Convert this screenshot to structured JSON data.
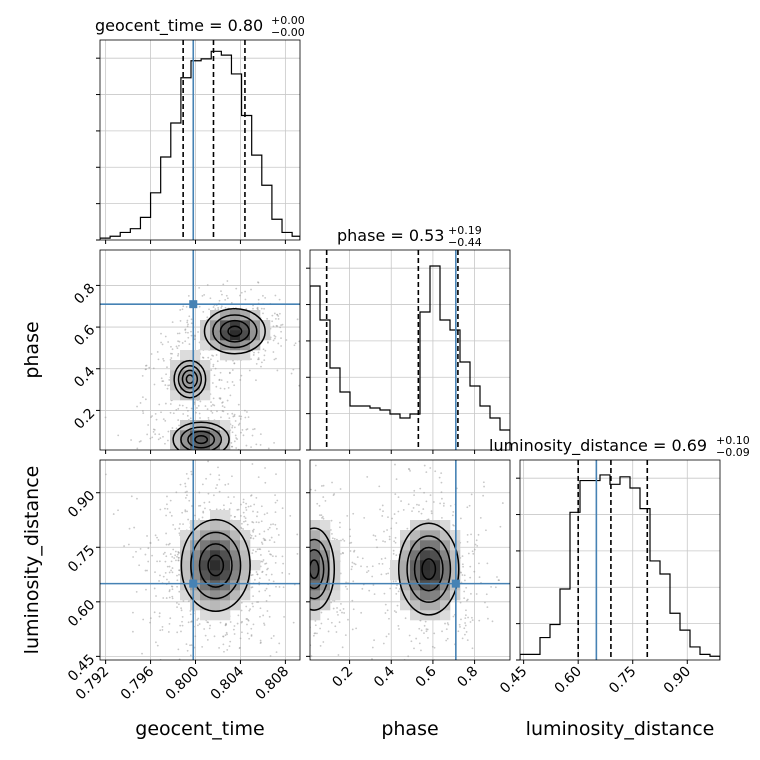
{
  "chart_data": {
    "type": "corner",
    "parameters": [
      "geocent_time",
      "phase",
      "luminosity_distance"
    ],
    "truths": {
      "geocent_time": 0.7998,
      "phase": 0.71,
      "luminosity_distance": 0.65
    },
    "colors": {
      "truth": "#4682b4",
      "hist": "#000000",
      "grid": "#c8c8c8",
      "density_max": "#333333"
    },
    "grid": true,
    "titles": [
      {
        "param": "geocent_time",
        "label": "geocent_time = 0.80",
        "plus": "+0.00",
        "minus": "−0.00"
      },
      {
        "param": "phase",
        "label": "phase = 0.53",
        "plus": "+0.19",
        "minus": "−0.44"
      },
      {
        "param": "luminosity_distance",
        "label": "luminosity_distance = 0.69",
        "plus": "+0.10",
        "minus": "−0.09"
      }
    ],
    "axis_labels": {
      "x": [
        "geocent_time",
        "phase",
        "luminosity_distance"
      ],
      "y": [
        "phase",
        "luminosity_distance"
      ]
    },
    "ranges": {
      "geocent_time": [
        0.7915,
        0.8093
      ],
      "phase": [
        0.01,
        0.97
      ],
      "luminosity_distance": [
        0.44,
        0.99
      ]
    },
    "ticks": {
      "geocent_time": [
        {
          "v": 0.792,
          "t": "0.792"
        },
        {
          "v": 0.796,
          "t": "0.796"
        },
        {
          "v": 0.8,
          "t": "0.800"
        },
        {
          "v": 0.804,
          "t": "0.804"
        },
        {
          "v": 0.808,
          "t": "0.808"
        }
      ],
      "phase": [
        {
          "v": 0.2,
          "t": "0.2"
        },
        {
          "v": 0.4,
          "t": "0.4"
        },
        {
          "v": 0.6,
          "t": "0.6"
        },
        {
          "v": 0.8,
          "t": "0.8"
        }
      ],
      "luminosity_distance": [
        {
          "v": 0.45,
          "t": "0.45"
        },
        {
          "v": 0.6,
          "t": "0.60"
        },
        {
          "v": 0.75,
          "t": "0.75"
        },
        {
          "v": 0.9,
          "t": "0.90"
        }
      ]
    },
    "quantiles": {
      "geocent_time": [
        0.7989,
        0.8016,
        0.8044
      ],
      "phase": [
        0.09,
        0.53,
        0.72
      ],
      "luminosity_distance": [
        0.6,
        0.69,
        0.79
      ]
    },
    "histograms": [
      {
        "param": "geocent_time",
        "edges": [
          0.7915,
          0.7924,
          0.7933,
          0.7942,
          0.7951,
          0.796,
          0.7969,
          0.7978,
          0.7987,
          0.7996,
          0.8005,
          0.8014,
          0.8023,
          0.8032,
          0.8041,
          0.805,
          0.8059,
          0.8068,
          0.8077,
          0.8086,
          0.8093
        ],
        "counts": [
          0.01,
          0.02,
          0.04,
          0.06,
          0.12,
          0.25,
          0.44,
          0.62,
          0.86,
          0.95,
          0.96,
          1.0,
          0.98,
          0.88,
          0.66,
          0.45,
          0.29,
          0.11,
          0.04,
          0.02
        ],
        "ymax": 1.06
      },
      {
        "param": "phase",
        "edges": [
          0.01,
          0.058,
          0.106,
          0.154,
          0.202,
          0.25,
          0.298,
          0.346,
          0.394,
          0.442,
          0.49,
          0.538,
          0.586,
          0.634,
          0.682,
          0.73,
          0.778,
          0.826,
          0.874,
          0.922,
          0.97
        ],
        "counts": [
          0.82,
          0.65,
          0.41,
          0.29,
          0.22,
          0.22,
          0.21,
          0.2,
          0.18,
          0.16,
          0.18,
          0.69,
          0.92,
          0.65,
          0.6,
          0.44,
          0.32,
          0.22,
          0.16,
          0.1
        ],
        "ymax": 1.0
      },
      {
        "param": "luminosity_distance",
        "edges": [
          0.44,
          0.4675,
          0.495,
          0.5225,
          0.55,
          0.5775,
          0.605,
          0.6325,
          0.66,
          0.6875,
          0.715,
          0.7425,
          0.77,
          0.7975,
          0.825,
          0.8525,
          0.88,
          0.9075,
          0.935,
          0.9625,
          0.99
        ],
        "counts": [
          0.03,
          0.03,
          0.12,
          0.19,
          0.38,
          0.79,
          0.96,
          0.96,
          0.99,
          0.94,
          0.98,
          0.92,
          0.81,
          0.53,
          0.46,
          0.25,
          0.16,
          0.07,
          0.03,
          0.02
        ],
        "ymax": 1.07
      }
    ],
    "density_modes": [
      {
        "pair": [
          "geocent_time",
          "phase"
        ],
        "blobs": [
          {
            "x": 0.8035,
            "y": 0.58,
            "sx": 0.0015,
            "sy": 0.06,
            "w": 1.0
          },
          {
            "x": 0.8005,
            "y": 0.06,
            "sx": 0.0015,
            "sy": 0.05,
            "w": 0.85
          },
          {
            "x": 0.7995,
            "y": 0.35,
            "sx": 0.0011,
            "sy": 0.07,
            "w": 0.5
          }
        ]
      },
      {
        "pair": [
          "geocent_time",
          "luminosity_distance"
        ],
        "blobs": [
          {
            "x": 0.8018,
            "y": 0.7,
            "sx": 0.0017,
            "sy": 0.07,
            "w": 1.0
          }
        ]
      },
      {
        "pair": [
          "phase",
          "luminosity_distance"
        ],
        "blobs": [
          {
            "x": 0.58,
            "y": 0.69,
            "sx": 0.08,
            "sy": 0.07,
            "w": 1.0
          },
          {
            "x": 0.03,
            "y": 0.69,
            "sx": 0.06,
            "sy": 0.07,
            "w": 0.8
          }
        ]
      }
    ]
  }
}
